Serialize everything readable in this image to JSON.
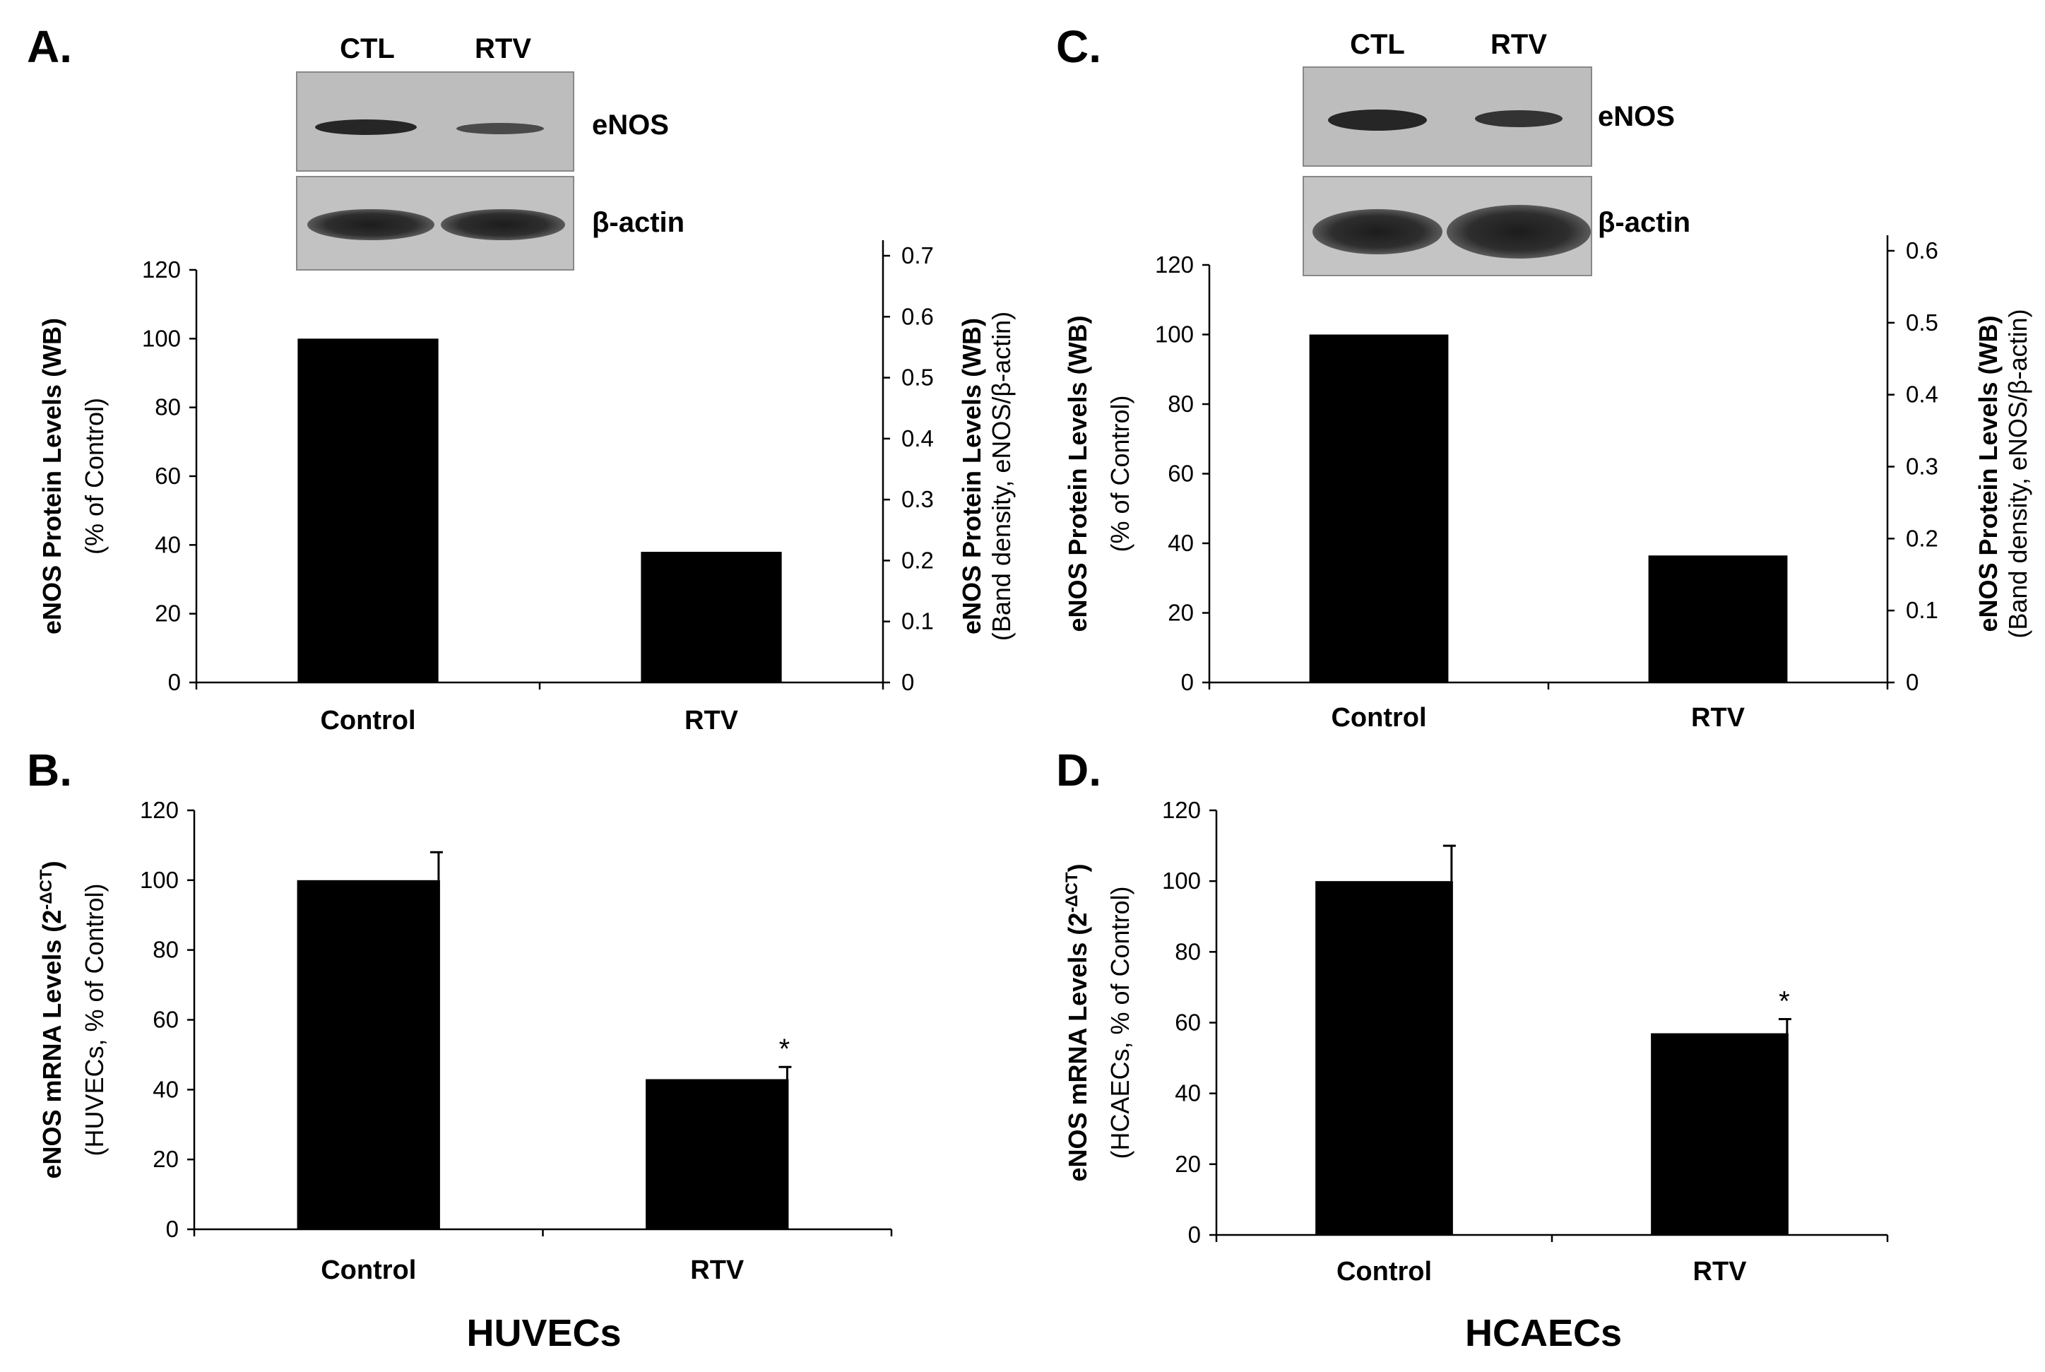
{
  "figure": {
    "panels": [
      {
        "letter": "A.",
        "blot": {
          "lanes": [
            "CTL",
            "RTV"
          ],
          "rows": [
            "eNOS",
            "β-actin"
          ]
        }
      },
      {
        "letter": "B."
      },
      {
        "letter": "C.",
        "blot": {
          "lanes": [
            "CTL",
            "RTV"
          ],
          "rows": [
            "eNOS",
            "β-actin"
          ]
        }
      },
      {
        "letter": "D."
      }
    ],
    "cell_types": [
      "HUVECs",
      "HCAECs"
    ]
  },
  "chart_data": [
    {
      "id": "A",
      "type": "bar",
      "categories": [
        "Control",
        "RTV"
      ],
      "values": [
        100,
        38
      ],
      "ylim": [
        0,
        120
      ],
      "yticks": [
        0,
        20,
        40,
        60,
        80,
        100,
        120
      ],
      "ylabel": "eNOS Protein Levels (WB)",
      "ylabel_sub": "(% of Control)",
      "y2": {
        "ylim": [
          0,
          0.7
        ],
        "yticks": [
          "0",
          "0.1",
          "0.2",
          "0.3",
          "0.4",
          "0.5",
          "0.6",
          "0.7"
        ],
        "ylabel": "eNOS Protein Levels (WB)",
        "ylabel_sub": "(Band density, eNOS/β-actin)"
      },
      "bar_color": "#000000"
    },
    {
      "id": "B",
      "type": "bar",
      "categories": [
        "Control",
        "RTV"
      ],
      "values": [
        100,
        43
      ],
      "errors": [
        8,
        3.5
      ],
      "significance": [
        "",
        "*"
      ],
      "ylim": [
        0,
        120
      ],
      "yticks": [
        0,
        20,
        40,
        60,
        80,
        100,
        120
      ],
      "ylabel_pre": "eNOS mRNA Levels (2",
      "ylabel_sup": "-ΔCT",
      "ylabel_post": ")",
      "ylabel_sub": "(HUVECs, % of Control)",
      "bar_color": "#000000"
    },
    {
      "id": "C",
      "type": "bar",
      "categories": [
        "Control",
        "RTV"
      ],
      "values": [
        100,
        36.5
      ],
      "ylim": [
        0,
        120
      ],
      "yticks": [
        0,
        20,
        40,
        60,
        80,
        100,
        120
      ],
      "ylabel": "eNOS Protein Levels (WB)",
      "ylabel_sub": "(% of Control)",
      "y2": {
        "ylim": [
          0,
          0.6
        ],
        "yticks": [
          "0",
          "0.1",
          "0.2",
          "0.3",
          "0.4",
          "0.5",
          "0.6"
        ],
        "ylabel": "eNOS Protein Levels (WB)",
        "ylabel_sub": "(Band density, eNOS/β-actin)"
      },
      "bar_color": "#000000"
    },
    {
      "id": "D",
      "type": "bar",
      "categories": [
        "Control",
        "RTV"
      ],
      "values": [
        100,
        57
      ],
      "errors": [
        10,
        4
      ],
      "significance": [
        "",
        "*"
      ],
      "ylim": [
        0,
        120
      ],
      "yticks": [
        0,
        20,
        40,
        60,
        80,
        100,
        120
      ],
      "ylabel_pre": "eNOS mRNA Levels (2",
      "ylabel_sup": "-ΔCT",
      "ylabel_post": ")",
      "ylabel_sub": "(HCAECs,  % of Control)",
      "bar_color": "#000000"
    }
  ]
}
